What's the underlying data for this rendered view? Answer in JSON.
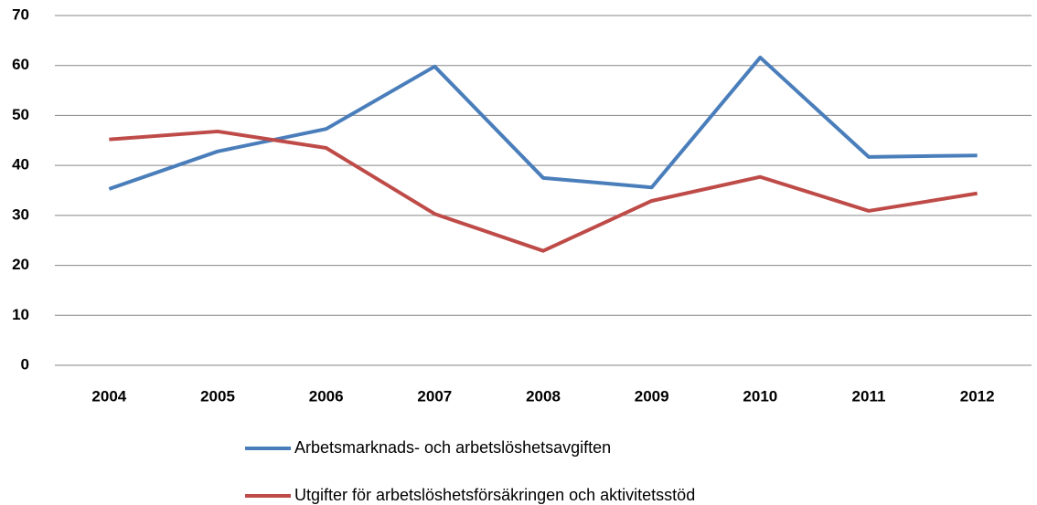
{
  "chart_data": {
    "type": "line",
    "categories": [
      "2004",
      "2005",
      "2006",
      "2007",
      "2008",
      "2009",
      "2010",
      "2011",
      "2012"
    ],
    "series": [
      {
        "name": "Arbetsmarknads- och arbetslöshetsavgiften",
        "color": "#4a7ebb",
        "values": [
          35.3,
          42.8,
          47.3,
          59.8,
          37.5,
          35.6,
          61.6,
          41.7,
          42.0
        ]
      },
      {
        "name": "Utgifter för arbetslöshetsförsäkringen och aktivitetsstöd",
        "color": "#be4b48",
        "values": [
          45.2,
          46.8,
          43.5,
          30.3,
          22.9,
          32.9,
          37.7,
          30.9,
          34.4
        ]
      }
    ],
    "ylim": [
      0,
      70
    ],
    "yticks": [
      0,
      10,
      20,
      30,
      40,
      50,
      60,
      70
    ],
    "grid": true,
    "legend": "bottom"
  }
}
